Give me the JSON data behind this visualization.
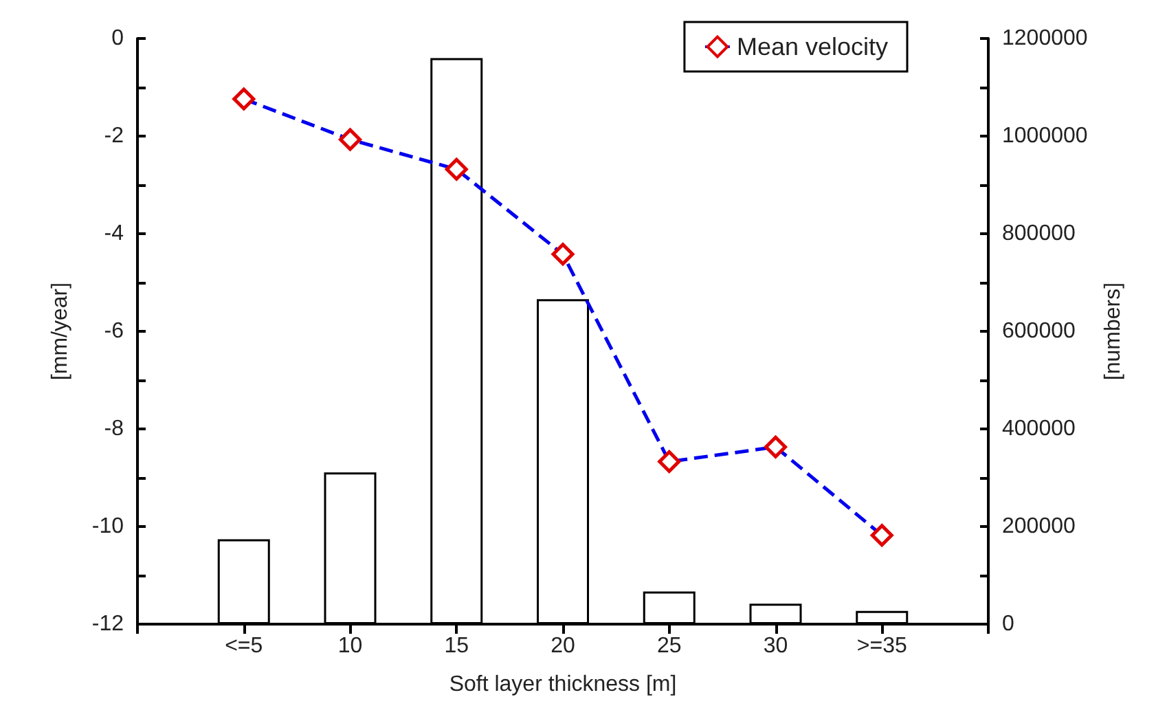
{
  "chart_data": {
    "type": "bar",
    "xlabel": "Soft layer thickness [m]",
    "ylabel": "[mm/year]",
    "y2label": "[numbers]",
    "categories": [
      "<=5",
      "10",
      "15",
      "20",
      "25",
      "30",
      ">=35"
    ],
    "series": [
      {
        "axis": "y2",
        "color": "#ffffff",
        "values": [
          174000,
          311000,
          1160000,
          666000,
          67000,
          42000,
          27000
        ]
      },
      {
        "type": "line",
        "name": "Mean velocity",
        "axis": "y",
        "color": "#0000ee",
        "marker": "diamond",
        "line_style": "dashed",
        "values": [
          -1.24,
          -2.07,
          -2.68,
          -4.42,
          -8.67,
          -8.37,
          -10.18
        ]
      }
    ],
    "ylim": [
      -12,
      0
    ],
    "yticks": [
      -12,
      {
        "value": -11,
        "label": null
      },
      -10,
      {
        "value": -9,
        "label": null
      },
      -8,
      {
        "value": -7,
        "label": null
      },
      -6,
      {
        "value": -5,
        "label": null
      },
      -4,
      {
        "value": -3,
        "label": null
      },
      -2,
      {
        "value": -1,
        "label": null
      },
      0
    ],
    "y2lim": [
      0,
      1200000
    ],
    "y2ticks": [
      0,
      {
        "value": 100000,
        "label": null
      },
      200000,
      {
        "value": 300000,
        "label": null
      },
      400000,
      {
        "value": 500000,
        "label": null
      },
      600000,
      {
        "value": 700000,
        "label": null
      },
      800000,
      {
        "value": 900000,
        "label": null
      },
      1000000,
      {
        "value": 1100000,
        "label": null
      },
      1200000
    ],
    "grid": false,
    "legend": "top right"
  }
}
